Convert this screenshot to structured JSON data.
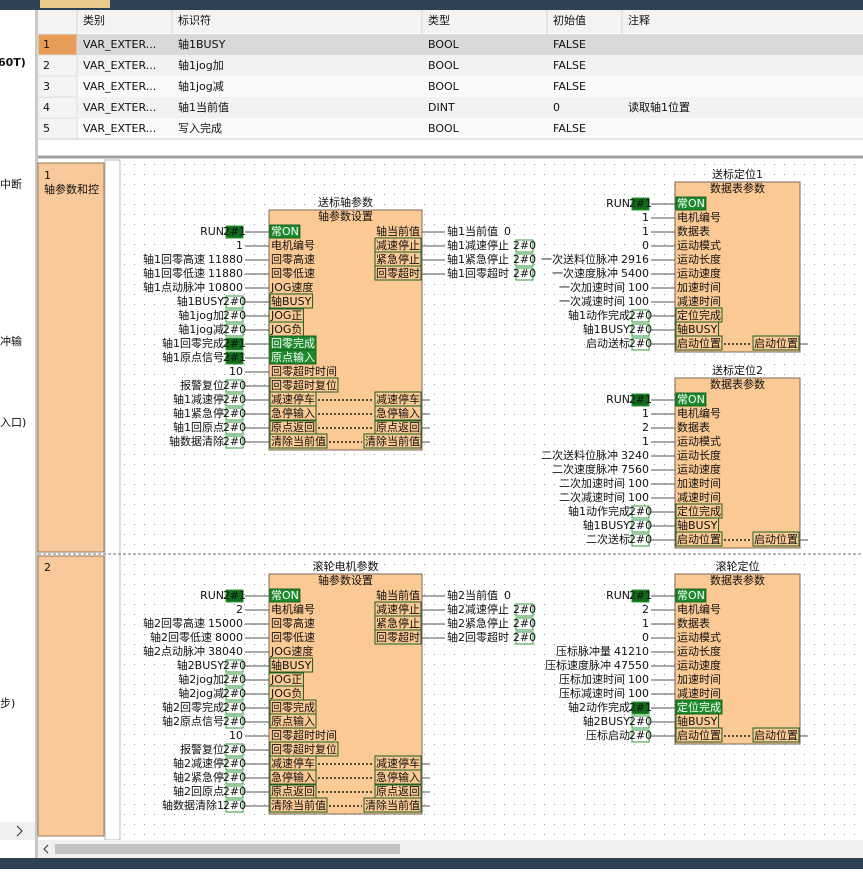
{
  "sidebar": [
    "60T)",
    "中断",
    "冲输",
    "入口)",
    "步)"
  ],
  "table": {
    "headers": [
      "类别",
      "标识符",
      "类型",
      "初始值",
      "注释"
    ],
    "rows": [
      [
        1,
        "VAR_EXTER...",
        "轴1BUSY",
        "BOOL",
        "FALSE"
      ],
      [
        2,
        "VAR_EXTER...",
        "轴1jog加",
        "BOOL",
        "FALSE"
      ],
      [
        3,
        "VAR_EXTER...",
        "轴1jog减",
        "BOOL",
        "FALSE"
      ],
      [
        4,
        "VAR_EXTER...",
        "轴1当前值",
        "DINT",
        0,
        "读取轴1位置"
      ],
      [
        5,
        "VAR_EXTER...",
        "写入完成",
        "BOOL",
        "FALSE"
      ]
    ]
  },
  "networks": [
    {
      "number": 1,
      "label": "轴参数和控",
      "blocks": [
        {
          "instance": "送标轴参数",
          "type": "轴参数设置",
          "inputs": [
            {
              "var": "RUN",
              "value": "2#1",
              "pin": "常ON"
            },
            {
              "value": 1,
              "pin": "电机编号"
            },
            {
              "var": "轴1回零高速",
              "value": 11880,
              "pin": "回零高速"
            },
            {
              "var": "轴1回零低速",
              "value": 11880,
              "pin": "回零低速"
            },
            {
              "var": "轴1点动脉冲",
              "value": 10800,
              "pin": "JOG速度"
            },
            {
              "var": "轴1BUSY",
              "value": "2#0",
              "pin": "轴BUSY"
            },
            {
              "var": "轴1jog加",
              "value": "2#0",
              "pin": "JOG正"
            },
            {
              "var": "轴1jog减",
              "value": "2#0",
              "pin": "JOG负"
            },
            {
              "var": "轴1回零完成",
              "value": "2#1",
              "pin": "回零完成"
            },
            {
              "var": "轴1原点信号",
              "value": "2#1",
              "pin": "原点输入"
            },
            {
              "value": 10,
              "pin": "回零超时时间"
            },
            {
              "var": "报警复位",
              "value": "2#0",
              "pin": "回零超时复位"
            },
            {
              "var": "轴1减速停",
              "value": "2#0",
              "pin": "减速停车",
              "out_pin": "减速停车"
            },
            {
              "var": "轴1紧急停",
              "value": "2#0",
              "pin": "急停输入",
              "out_pin": "急停输入"
            },
            {
              "var": "轴1回原点",
              "value": "2#0",
              "pin": "原点返回",
              "out_pin": "原点返回"
            },
            {
              "var": "轴数据清除",
              "value": "2#0",
              "pin": "清除当前值",
              "out_pin": "清除当前值"
            }
          ],
          "outputs": [
            {
              "pin": "轴当前值",
              "var": "轴1当前值",
              "value": 0
            },
            {
              "pin": "减速停止",
              "var": "轴1减速停止",
              "value": "2#0"
            },
            {
              "pin": "紧急停止",
              "var": "轴1紧急停止",
              "value": "2#0"
            },
            {
              "pin": "回零超时",
              "var": "轴1回零超时",
              "value": "2#0"
            }
          ]
        },
        {
          "instance": "送标定位1",
          "type": "数据表参数",
          "inputs": [
            {
              "var": "RUN",
              "value": "2#1",
              "pin": "常ON"
            },
            {
              "value": 1,
              "pin": "电机编号"
            },
            {
              "value": 1,
              "pin": "数据表"
            },
            {
              "value": 0,
              "pin": "运动模式"
            },
            {
              "var": "一次送料位脉冲",
              "value": 2916,
              "pin": "运动长度"
            },
            {
              "var": "一次速度脉冲",
              "value": 5400,
              "pin": "运动速度"
            },
            {
              "var": "一次加速时间",
              "value": 100,
              "pin": "加速时间"
            },
            {
              "var": "一次减速时间",
              "value": 100,
              "pin": "减速时间"
            },
            {
              "var": "轴1动作完成",
              "value": "2#0",
              "pin": "定位完成"
            },
            {
              "var": "轴1BUSY",
              "value": "2#0",
              "pin": "轴BUSY"
            },
            {
              "var": "启动送标",
              "value": "2#0",
              "pin": "启动位置",
              "out_pin": "启动位置"
            }
          ]
        },
        {
          "instance": "送标定位2",
          "type": "数据表参数",
          "inputs": [
            {
              "var": "RUN",
              "value": "2#1",
              "pin": "常ON"
            },
            {
              "value": 1,
              "pin": "电机编号"
            },
            {
              "value": 2,
              "pin": "数据表"
            },
            {
              "value": 1,
              "pin": "运动模式"
            },
            {
              "var": "二次送料位脉冲",
              "value": 3240,
              "pin": "运动长度"
            },
            {
              "var": "二次速度脉冲",
              "value": 7560,
              "pin": "运动速度"
            },
            {
              "var": "二次加速时间",
              "value": 100,
              "pin": "加速时间"
            },
            {
              "var": "二次减速时间",
              "value": 100,
              "pin": "减速时间"
            },
            {
              "var": "轴1动作完成",
              "value": "2#0",
              "pin": "定位完成"
            },
            {
              "var": "轴1BUSY",
              "value": "2#0",
              "pin": "轴BUSY"
            },
            {
              "var": "二次送标",
              "value": "2#0",
              "pin": "启动位置",
              "out_pin": "启动位置"
            }
          ]
        }
      ]
    },
    {
      "number": 2,
      "blocks": [
        {
          "instance": "滚轮电机参数",
          "type": "轴参数设置",
          "inputs": [
            {
              "var": "RUN",
              "value": "2#1",
              "pin": "常ON"
            },
            {
              "value": 2,
              "pin": "电机编号"
            },
            {
              "var": "轴2回零高速",
              "value": 15000,
              "pin": "回零高速"
            },
            {
              "var": "轴2回零低速",
              "value": 8000,
              "pin": "回零低速"
            },
            {
              "var": "轴2点动脉冲",
              "value": 38040,
              "pin": "JOG速度"
            },
            {
              "var": "轴2BUSY",
              "value": "2#0",
              "pin": "轴BUSY"
            },
            {
              "var": "轴2jog加",
              "value": "2#0",
              "pin": "JOG正"
            },
            {
              "var": "轴2jog减",
              "value": "2#0",
              "pin": "JOG负"
            },
            {
              "var": "轴2回零完成",
              "value": "2#0",
              "pin": "回零完成"
            },
            {
              "var": "轴2原点信号",
              "value": "2#0",
              "pin": "原点输入"
            },
            {
              "value": 10,
              "pin": "回零超时时间"
            },
            {
              "var": "报警复位",
              "value": "2#0",
              "pin": "回零超时复位"
            },
            {
              "var": "轴2减速停",
              "value": "2#0",
              "pin": "减速停车",
              "out_pin": "减速停车"
            },
            {
              "var": "轴2紧急停",
              "value": "2#0",
              "pin": "急停输入",
              "out_pin": "急停输入"
            },
            {
              "var": "轴2回原点",
              "value": "2#0",
              "pin": "原点返回",
              "out_pin": "原点返回"
            },
            {
              "var": "轴数据清除1",
              "value": "2#0",
              "pin": "清除当前值",
              "out_pin": "清除当前值"
            }
          ],
          "outputs": [
            {
              "pin": "轴当前值",
              "var": "轴2当前值",
              "value": 0
            },
            {
              "pin": "减速停止",
              "var": "轴2减速停止",
              "value": "2#0"
            },
            {
              "pin": "紧急停止",
              "var": "轴2紧急停止",
              "value": "2#0"
            },
            {
              "pin": "回零超时",
              "var": "轴2回零超时",
              "value": "2#0"
            }
          ]
        },
        {
          "instance": "滚轮定位",
          "type": "数据表参数",
          "inputs": [
            {
              "var": "RUN",
              "value": "2#1",
              "pin": "常ON"
            },
            {
              "value": 2,
              "pin": "电机编号"
            },
            {
              "value": 1,
              "pin": "数据表"
            },
            {
              "value": 0,
              "pin": "运动模式"
            },
            {
              "var": "压标脉冲量",
              "value": 41210,
              "pin": "运动长度"
            },
            {
              "var": "压标速度脉冲",
              "value": 47550,
              "pin": "运动速度"
            },
            {
              "var": "压标加速时间",
              "value": 100,
              "pin": "加速时间"
            },
            {
              "var": "压标减速时间",
              "value": 100,
              "pin": "减速时间"
            },
            {
              "var": "轴2动作完成",
              "value": "2#1",
              "pin": "定位完成"
            },
            {
              "var": "轴2BUSY",
              "value": "2#0",
              "pin": "轴BUSY"
            },
            {
              "var": "压标启动",
              "value": "2#0",
              "pin": "启动位置",
              "out_pin": "启动位置"
            }
          ]
        }
      ]
    }
  ]
}
